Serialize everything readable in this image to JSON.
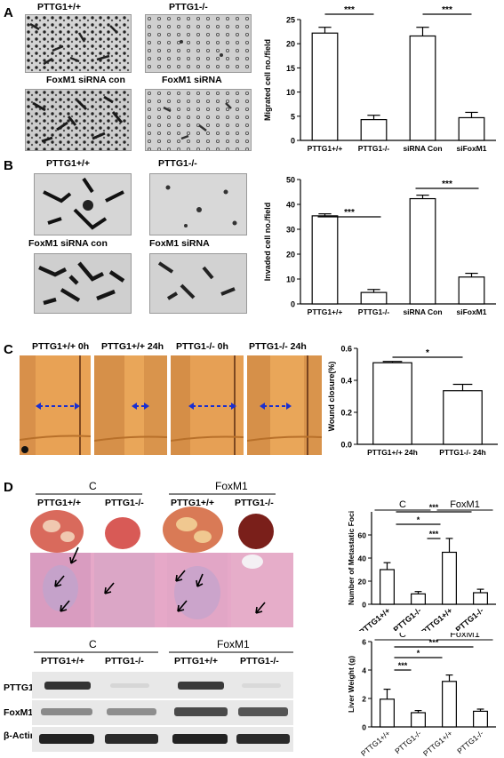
{
  "panel_letters": [
    "A",
    "B",
    "C",
    "D"
  ],
  "panel_a": {
    "image_labels": [
      "PTTG1+/+",
      "PTTG1-/-",
      "FoxM1 siRNA con",
      "FoxM1 siRNA"
    ],
    "chart_data": {
      "type": "bar",
      "categories": [
        "PTTG1+/+",
        "PTTG1-/-",
        "siRNA Con",
        "siFoxM1"
      ],
      "values": [
        22.2,
        4.3,
        21.6,
        4.7
      ],
      "errors": [
        1.2,
        0.9,
        1.8,
        1.1
      ],
      "ylabel": "Migrated cell no./field",
      "ylim": [
        0,
        25
      ],
      "yticks": [
        0,
        5,
        10,
        15,
        20,
        25
      ],
      "significance": [
        "***",
        "***"
      ]
    }
  },
  "panel_b": {
    "image_labels": [
      "PTTG1+/+",
      "PTTG1-/-",
      "FoxM1 siRNA con",
      "FoxM1 siRNA"
    ],
    "chart_data": {
      "type": "bar",
      "categories": [
        "PTTG1+/+",
        "PTTG1-/-",
        "siRNA Con",
        "siFoxM1"
      ],
      "values": [
        35.4,
        4.6,
        42.3,
        10.8
      ],
      "errors": [
        0.8,
        1.2,
        1.4,
        1.5
      ],
      "ylabel": "Invaded cell no./field",
      "ylim": [
        0,
        50
      ],
      "yticks": [
        0,
        10,
        20,
        30,
        40,
        50
      ],
      "significance": [
        "***",
        "***"
      ]
    }
  },
  "panel_c": {
    "image_labels": [
      "PTTG1+/+ 0h",
      "PTTG1+/+ 24h",
      "PTTG1-/- 0h",
      "PTTG1-/- 24h"
    ],
    "chart_data": {
      "type": "bar",
      "categories": [
        "PTTG1+/+ 24h",
        "PTTG1-/- 24h"
      ],
      "values": [
        0.51,
        0.335
      ],
      "errors": [
        0.008,
        0.04
      ],
      "ylabel": "Wound closure(%)",
      "ylim": [
        0,
        0.6
      ],
      "yticks": [
        "0.0",
        "0.2",
        "0.4",
        "0.6"
      ],
      "significance": [
        "*"
      ]
    }
  },
  "panel_d": {
    "group_labels": [
      "C",
      "FoxM1"
    ],
    "image_labels": [
      "PTTG1+/+",
      "PTTG1-/-",
      "PTTG1+/+",
      "PTTG1-/-"
    ],
    "western": {
      "group_labels": [
        "C",
        "FoxM1"
      ],
      "lane_labels": [
        "PTTG1+/+",
        "PTTG1-/-",
        "PTTG1+/+",
        "PTTG1-/-"
      ],
      "row_labels": [
        "PTTG1",
        "FoxM1",
        "β-Actin"
      ]
    },
    "chart_data": [
      {
        "type": "bar",
        "group_labels": [
          "C",
          "FoxM1"
        ],
        "categories": [
          "PTTG1+/+",
          "PTTG1-/-",
          "PTTG1+/+",
          "PTTG1-/-"
        ],
        "values": [
          30,
          9,
          45,
          10
        ],
        "errors": [
          6,
          2,
          12,
          3
        ],
        "ylabel": "Number of Metastatic Foci",
        "ylim": [
          0,
          80
        ],
        "yticks": [
          0,
          20,
          40,
          60
        ],
        "significance": [
          "***",
          "*",
          "***"
        ]
      },
      {
        "type": "bar",
        "group_labels": [
          "C",
          "FoxM1"
        ],
        "categories": [
          "PTTG1+/+",
          "PTTG1-/-",
          "PTTG1+/+",
          "PTTG1-/-"
        ],
        "values": [
          1.95,
          1.0,
          3.2,
          1.1
        ],
        "errors": [
          0.7,
          0.15,
          0.45,
          0.15
        ],
        "ylabel": "Liver Weight (g)",
        "ylim": [
          0,
          6
        ],
        "yticks": [
          0,
          2,
          4,
          6
        ],
        "significance": [
          "***",
          "*",
          "***"
        ]
      }
    ]
  }
}
